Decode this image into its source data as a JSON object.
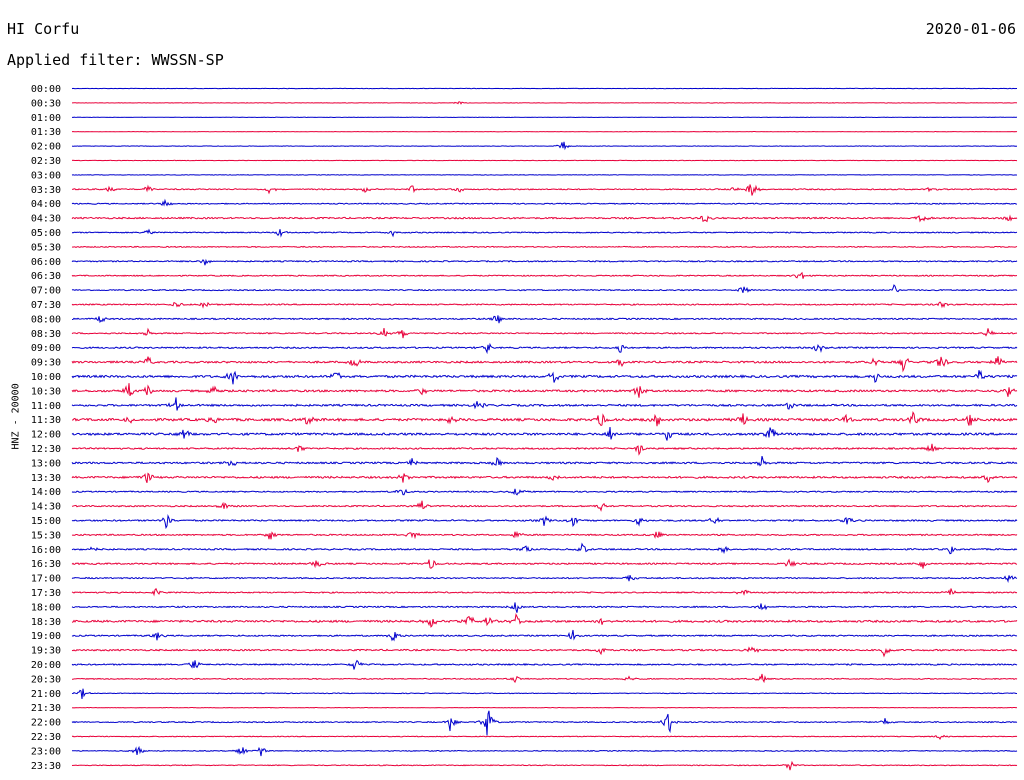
{
  "header": {
    "station": "HI Corfu",
    "date": "2020-01-06",
    "filter": "Applied filter: WWSSN-SP"
  },
  "colors": {
    "blue": "#0000cc",
    "red": "#e8003a"
  },
  "chart_data": {
    "type": "line",
    "subtype": "helicorder",
    "ylabel": "HNZ - 20000",
    "row_labels": [
      "00:00",
      "00:30",
      "01:00",
      "01:30",
      "02:00",
      "02:30",
      "03:00",
      "03:30",
      "04:00",
      "04:30",
      "05:00",
      "05:30",
      "06:00",
      "06:30",
      "07:00",
      "07:30",
      "08:00",
      "08:30",
      "09:00",
      "09:30",
      "10:00",
      "10:30",
      "11:00",
      "11:30",
      "12:00",
      "12:30",
      "13:00",
      "13:30",
      "14:00",
      "14:30",
      "15:00",
      "15:30",
      "16:00",
      "16:30",
      "17:00",
      "17:30",
      "18:00",
      "18:30",
      "19:00",
      "19:30",
      "20:00",
      "20:30",
      "21:00",
      "21:30",
      "22:00",
      "22:30",
      "23:00",
      "23:30"
    ],
    "color_cycle": [
      "blue",
      "red"
    ],
    "row_activity": [
      0.3,
      0.3,
      0.3,
      0.3,
      0.4,
      0.3,
      0.4,
      0.9,
      0.8,
      1.2,
      0.9,
      0.8,
      1.0,
      0.9,
      0.9,
      1.0,
      1.1,
      1.0,
      1.2,
      1.5,
      1.8,
      1.6,
      1.5,
      2.0,
      1.8,
      1.2,
      1.4,
      1.5,
      1.0,
      1.1,
      1.2,
      1.1,
      1.2,
      1.2,
      1.0,
      1.0,
      1.1,
      1.6,
      1.1,
      1.2,
      1.1,
      0.8,
      0.6,
      0.4,
      0.9,
      0.6,
      0.7,
      0.7
    ],
    "events": [
      {
        "row": 1,
        "t": 0.41,
        "amp": 2
      },
      {
        "row": 4,
        "t": 0.52,
        "amp": 6
      },
      {
        "row": 7,
        "t": 0.04,
        "amp": 4
      },
      {
        "row": 7,
        "t": 0.08,
        "amp": 5
      },
      {
        "row": 7,
        "t": 0.21,
        "amp": 5
      },
      {
        "row": 7,
        "t": 0.31,
        "amp": 4
      },
      {
        "row": 7,
        "t": 0.36,
        "amp": 4
      },
      {
        "row": 7,
        "t": 0.41,
        "amp": 4
      },
      {
        "row": 7,
        "t": 0.7,
        "amp": 4
      },
      {
        "row": 7,
        "t": 0.72,
        "amp": 12
      },
      {
        "row": 7,
        "t": 0.91,
        "amp": 4
      },
      {
        "row": 8,
        "t": 0.1,
        "amp": 6
      },
      {
        "row": 9,
        "t": 0.67,
        "amp": 7
      },
      {
        "row": 9,
        "t": 0.9,
        "amp": 6
      },
      {
        "row": 9,
        "t": 0.99,
        "amp": 6
      },
      {
        "row": 10,
        "t": 0.08,
        "amp": 5
      },
      {
        "row": 10,
        "t": 0.22,
        "amp": 5
      },
      {
        "row": 10,
        "t": 0.34,
        "amp": 5
      },
      {
        "row": 12,
        "t": 0.14,
        "amp": 5
      },
      {
        "row": 13,
        "t": 0.77,
        "amp": 8
      },
      {
        "row": 14,
        "t": 0.71,
        "amp": 6
      },
      {
        "row": 14,
        "t": 0.87,
        "amp": 6
      },
      {
        "row": 15,
        "t": 0.11,
        "amp": 5
      },
      {
        "row": 15,
        "t": 0.14,
        "amp": 6
      },
      {
        "row": 15,
        "t": 0.92,
        "amp": 6
      },
      {
        "row": 16,
        "t": 0.03,
        "amp": 5
      },
      {
        "row": 16,
        "t": 0.45,
        "amp": 8
      },
      {
        "row": 17,
        "t": 0.08,
        "amp": 5
      },
      {
        "row": 17,
        "t": 0.33,
        "amp": 6
      },
      {
        "row": 17,
        "t": 0.35,
        "amp": 6
      },
      {
        "row": 17,
        "t": 0.97,
        "amp": 6
      },
      {
        "row": 18,
        "t": 0.44,
        "amp": 6
      },
      {
        "row": 18,
        "t": 0.58,
        "amp": 6
      },
      {
        "row": 18,
        "t": 0.79,
        "amp": 6
      },
      {
        "row": 19,
        "t": 0.08,
        "amp": 7
      },
      {
        "row": 19,
        "t": 0.3,
        "amp": 8
      },
      {
        "row": 19,
        "t": 0.58,
        "amp": 7
      },
      {
        "row": 19,
        "t": 0.85,
        "amp": 7
      },
      {
        "row": 19,
        "t": 0.88,
        "amp": 11
      },
      {
        "row": 19,
        "t": 0.92,
        "amp": 12
      },
      {
        "row": 19,
        "t": 0.98,
        "amp": 8
      },
      {
        "row": 20,
        "t": 0.17,
        "amp": 10
      },
      {
        "row": 20,
        "t": 0.28,
        "amp": 8
      },
      {
        "row": 20,
        "t": 0.51,
        "amp": 9
      },
      {
        "row": 20,
        "t": 0.85,
        "amp": 7
      },
      {
        "row": 20,
        "t": 0.96,
        "amp": 7
      },
      {
        "row": 21,
        "t": 0.06,
        "amp": 9
      },
      {
        "row": 21,
        "t": 0.08,
        "amp": 8
      },
      {
        "row": 21,
        "t": 0.15,
        "amp": 7
      },
      {
        "row": 21,
        "t": 0.37,
        "amp": 6
      },
      {
        "row": 21,
        "t": 0.6,
        "amp": 8
      },
      {
        "row": 21,
        "t": 0.99,
        "amp": 7
      },
      {
        "row": 22,
        "t": 0.11,
        "amp": 8
      },
      {
        "row": 22,
        "t": 0.43,
        "amp": 6
      },
      {
        "row": 22,
        "t": 0.76,
        "amp": 7
      },
      {
        "row": 23,
        "t": 0.06,
        "amp": 6
      },
      {
        "row": 23,
        "t": 0.15,
        "amp": 6
      },
      {
        "row": 23,
        "t": 0.25,
        "amp": 7
      },
      {
        "row": 23,
        "t": 0.4,
        "amp": 6
      },
      {
        "row": 23,
        "t": 0.56,
        "amp": 9
      },
      {
        "row": 23,
        "t": 0.62,
        "amp": 8
      },
      {
        "row": 23,
        "t": 0.71,
        "amp": 9
      },
      {
        "row": 23,
        "t": 0.82,
        "amp": 8
      },
      {
        "row": 23,
        "t": 0.89,
        "amp": 9
      },
      {
        "row": 23,
        "t": 0.95,
        "amp": 10
      },
      {
        "row": 24,
        "t": 0.12,
        "amp": 8
      },
      {
        "row": 24,
        "t": 0.57,
        "amp": 8
      },
      {
        "row": 24,
        "t": 0.63,
        "amp": 7
      },
      {
        "row": 24,
        "t": 0.74,
        "amp": 10
      },
      {
        "row": 25,
        "t": 0.24,
        "amp": 6
      },
      {
        "row": 25,
        "t": 0.6,
        "amp": 6
      },
      {
        "row": 25,
        "t": 0.91,
        "amp": 6
      },
      {
        "row": 26,
        "t": 0.17,
        "amp": 6
      },
      {
        "row": 26,
        "t": 0.36,
        "amp": 6
      },
      {
        "row": 26,
        "t": 0.45,
        "amp": 6
      },
      {
        "row": 26,
        "t": 0.73,
        "amp": 8
      },
      {
        "row": 27,
        "t": 0.08,
        "amp": 8
      },
      {
        "row": 27,
        "t": 0.35,
        "amp": 6
      },
      {
        "row": 27,
        "t": 0.51,
        "amp": 6
      },
      {
        "row": 27,
        "t": 0.97,
        "amp": 6
      },
      {
        "row": 28,
        "t": 0.35,
        "amp": 11
      },
      {
        "row": 28,
        "t": 0.47,
        "amp": 5
      },
      {
        "row": 29,
        "t": 0.16,
        "amp": 5
      },
      {
        "row": 29,
        "t": 0.37,
        "amp": 7
      },
      {
        "row": 29,
        "t": 0.56,
        "amp": 6
      },
      {
        "row": 30,
        "t": 0.1,
        "amp": 9
      },
      {
        "row": 30,
        "t": 0.5,
        "amp": 7
      },
      {
        "row": 30,
        "t": 0.53,
        "amp": 6
      },
      {
        "row": 30,
        "t": 0.6,
        "amp": 6
      },
      {
        "row": 30,
        "t": 0.68,
        "amp": 6
      },
      {
        "row": 30,
        "t": 0.82,
        "amp": 7
      },
      {
        "row": 31,
        "t": 0.21,
        "amp": 7
      },
      {
        "row": 31,
        "t": 0.36,
        "amp": 7
      },
      {
        "row": 31,
        "t": 0.47,
        "amp": 6
      },
      {
        "row": 31,
        "t": 0.62,
        "amp": 6
      },
      {
        "row": 32,
        "t": 0.02,
        "amp": 6
      },
      {
        "row": 32,
        "t": 0.48,
        "amp": 6
      },
      {
        "row": 32,
        "t": 0.54,
        "amp": 7
      },
      {
        "row": 32,
        "t": 0.69,
        "amp": 5
      },
      {
        "row": 32,
        "t": 0.93,
        "amp": 5
      },
      {
        "row": 33,
        "t": 0.26,
        "amp": 6
      },
      {
        "row": 33,
        "t": 0.38,
        "amp": 7
      },
      {
        "row": 33,
        "t": 0.76,
        "amp": 6
      },
      {
        "row": 33,
        "t": 0.9,
        "amp": 6
      },
      {
        "row": 34,
        "t": 0.59,
        "amp": 5
      },
      {
        "row": 34,
        "t": 0.99,
        "amp": 6
      },
      {
        "row": 35,
        "t": 0.09,
        "amp": 5
      },
      {
        "row": 35,
        "t": 0.71,
        "amp": 6
      },
      {
        "row": 35,
        "t": 0.93,
        "amp": 5
      },
      {
        "row": 36,
        "t": 0.47,
        "amp": 7
      },
      {
        "row": 36,
        "t": 0.73,
        "amp": 6
      },
      {
        "row": 37,
        "t": 0.38,
        "amp": 8
      },
      {
        "row": 37,
        "t": 0.42,
        "amp": 9
      },
      {
        "row": 37,
        "t": 0.44,
        "amp": 7
      },
      {
        "row": 37,
        "t": 0.47,
        "amp": 8
      },
      {
        "row": 37,
        "t": 0.56,
        "amp": 6
      },
      {
        "row": 38,
        "t": 0.09,
        "amp": 6
      },
      {
        "row": 38,
        "t": 0.34,
        "amp": 9
      },
      {
        "row": 38,
        "t": 0.53,
        "amp": 6
      },
      {
        "row": 39,
        "t": 0.56,
        "amp": 5
      },
      {
        "row": 39,
        "t": 0.72,
        "amp": 7
      },
      {
        "row": 39,
        "t": 0.86,
        "amp": 9
      },
      {
        "row": 40,
        "t": 0.13,
        "amp": 7
      },
      {
        "row": 40,
        "t": 0.3,
        "amp": 9
      },
      {
        "row": 41,
        "t": 0.47,
        "amp": 5
      },
      {
        "row": 41,
        "t": 0.59,
        "amp": 5
      },
      {
        "row": 41,
        "t": 0.73,
        "amp": 6
      },
      {
        "row": 42,
        "t": 0.01,
        "amp": 7
      },
      {
        "row": 44,
        "t": 0.4,
        "amp": 10
      },
      {
        "row": 44,
        "t": 0.44,
        "amp": 18
      },
      {
        "row": 44,
        "t": 0.63,
        "amp": 24
      },
      {
        "row": 44,
        "t": 0.86,
        "amp": 4
      },
      {
        "row": 45,
        "t": 0.92,
        "amp": 4
      },
      {
        "row": 46,
        "t": 0.07,
        "amp": 6
      },
      {
        "row": 46,
        "t": 0.18,
        "amp": 6
      },
      {
        "row": 46,
        "t": 0.2,
        "amp": 6
      },
      {
        "row": 47,
        "t": 0.76,
        "amp": 7
      }
    ]
  }
}
